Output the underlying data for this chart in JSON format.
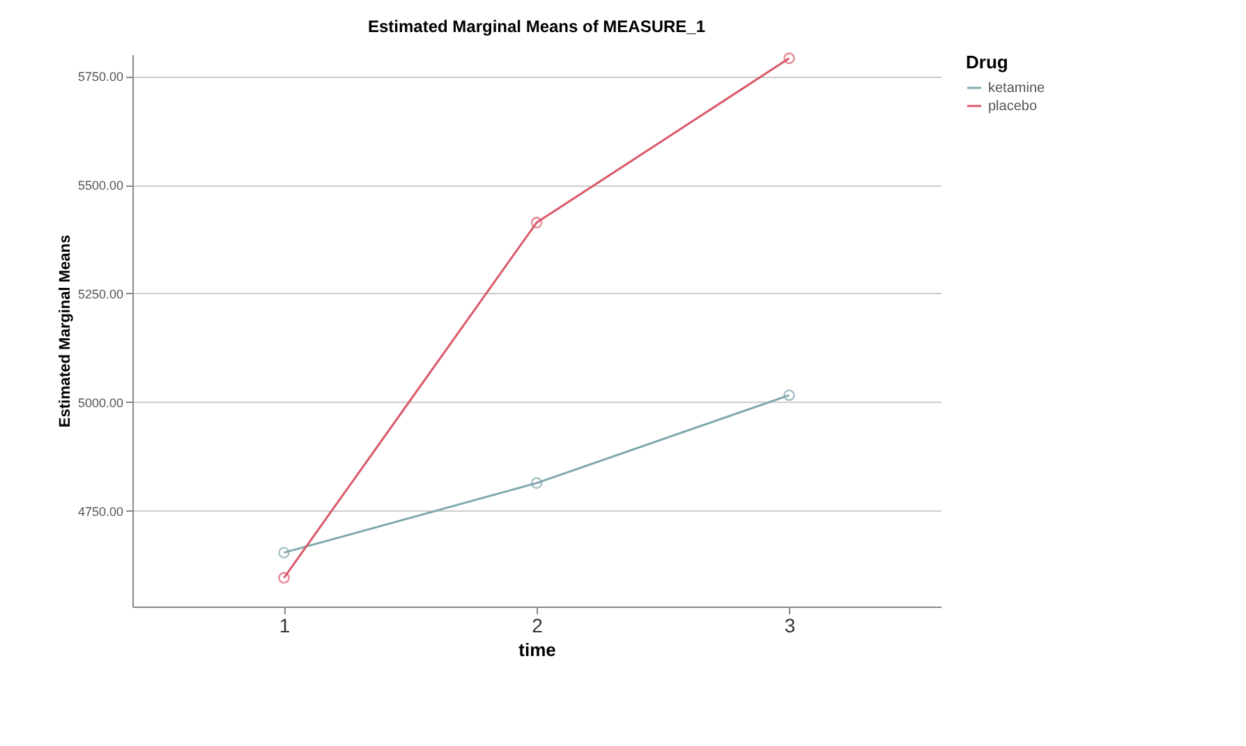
{
  "chart_data": {
    "type": "line",
    "title": "Estimated Marginal Means of MEASURE_1",
    "xlabel": "time",
    "ylabel": "Estimated Marginal Means",
    "legend_title": "Drug",
    "categories": [
      "1",
      "2",
      "3"
    ],
    "series": [
      {
        "name": "ketamine",
        "color": "#7fa8ad",
        "values": [
          4654,
          4814,
          5016
        ]
      },
      {
        "name": "placebo",
        "color": "#d9586a",
        "values": [
          4596,
          5413,
          5791
        ]
      }
    ],
    "ylim": [
      4530,
      5800
    ],
    "yticks": [
      {
        "value": 4750,
        "label": "4750.00"
      },
      {
        "value": 5000,
        "label": "5000.00"
      },
      {
        "value": 5250,
        "label": "5250.00"
      },
      {
        "value": 5500,
        "label": "5500.00"
      },
      {
        "value": 5750,
        "label": "5750.00"
      }
    ],
    "grid": "y",
    "legend": "top right",
    "marker": "circle",
    "line_style": "solid"
  }
}
